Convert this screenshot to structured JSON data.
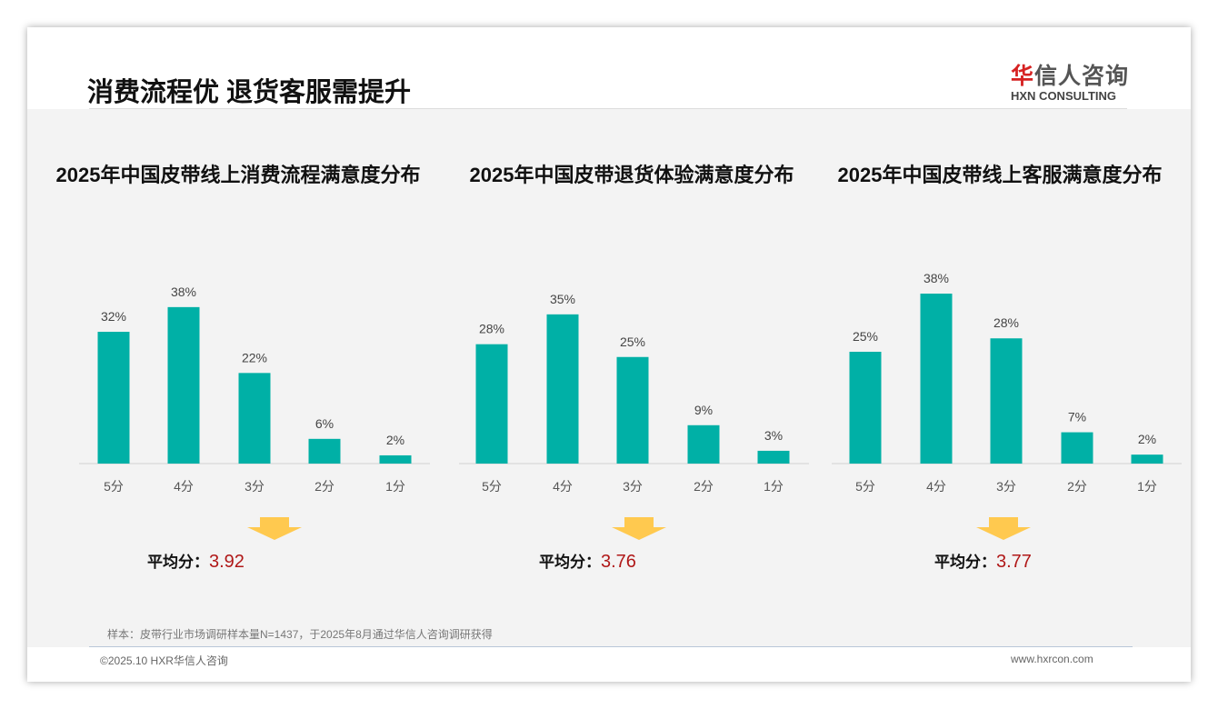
{
  "header": {
    "title": "消费流程优 退货客服需提升",
    "logo_cn_red": "华",
    "logo_cn": "信人咨询",
    "logo_en": "HXN CONSULTING"
  },
  "colors": {
    "bar": "#00b0a6",
    "arrow": "#ffc94f",
    "avg": "#b01818"
  },
  "chart_data": [
    {
      "type": "bar",
      "title": "2025年中国皮带线上消费流程满意度分布",
      "categories": [
        "5分",
        "4分",
        "3分",
        "2分",
        "1分"
      ],
      "values": [
        32,
        38,
        22,
        6,
        2
      ],
      "labels": [
        "32%",
        "38%",
        "22%",
        "6%",
        "2%"
      ],
      "unit": "%",
      "avg_label": "平均分：",
      "avg_value": "3.92"
    },
    {
      "type": "bar",
      "title": "2025年中国皮带退货体验满意度分布",
      "categories": [
        "5分",
        "4分",
        "3分",
        "2分",
        "1分"
      ],
      "values": [
        28,
        35,
        25,
        9,
        3
      ],
      "labels": [
        "28%",
        "35%",
        "25%",
        "9%",
        "3%"
      ],
      "unit": "%",
      "avg_label": "平均分：",
      "avg_value": "3.76"
    },
    {
      "type": "bar",
      "title": "2025年中国皮带线上客服满意度分布",
      "categories": [
        "5分",
        "4分",
        "3分",
        "2分",
        "1分"
      ],
      "values": [
        25,
        38,
        28,
        7,
        2
      ],
      "labels": [
        "25%",
        "38%",
        "28%",
        "7%",
        "2%"
      ],
      "unit": "%",
      "avg_label": "平均分：",
      "avg_value": "3.77"
    }
  ],
  "footer": {
    "note": "样本：皮带行业市场调研样本量N=1437，于2025年8月通过华信人咨询调研获得",
    "copyright": "©2025.10 HXR华信人咨询",
    "url": "www.hxrcon.com"
  }
}
